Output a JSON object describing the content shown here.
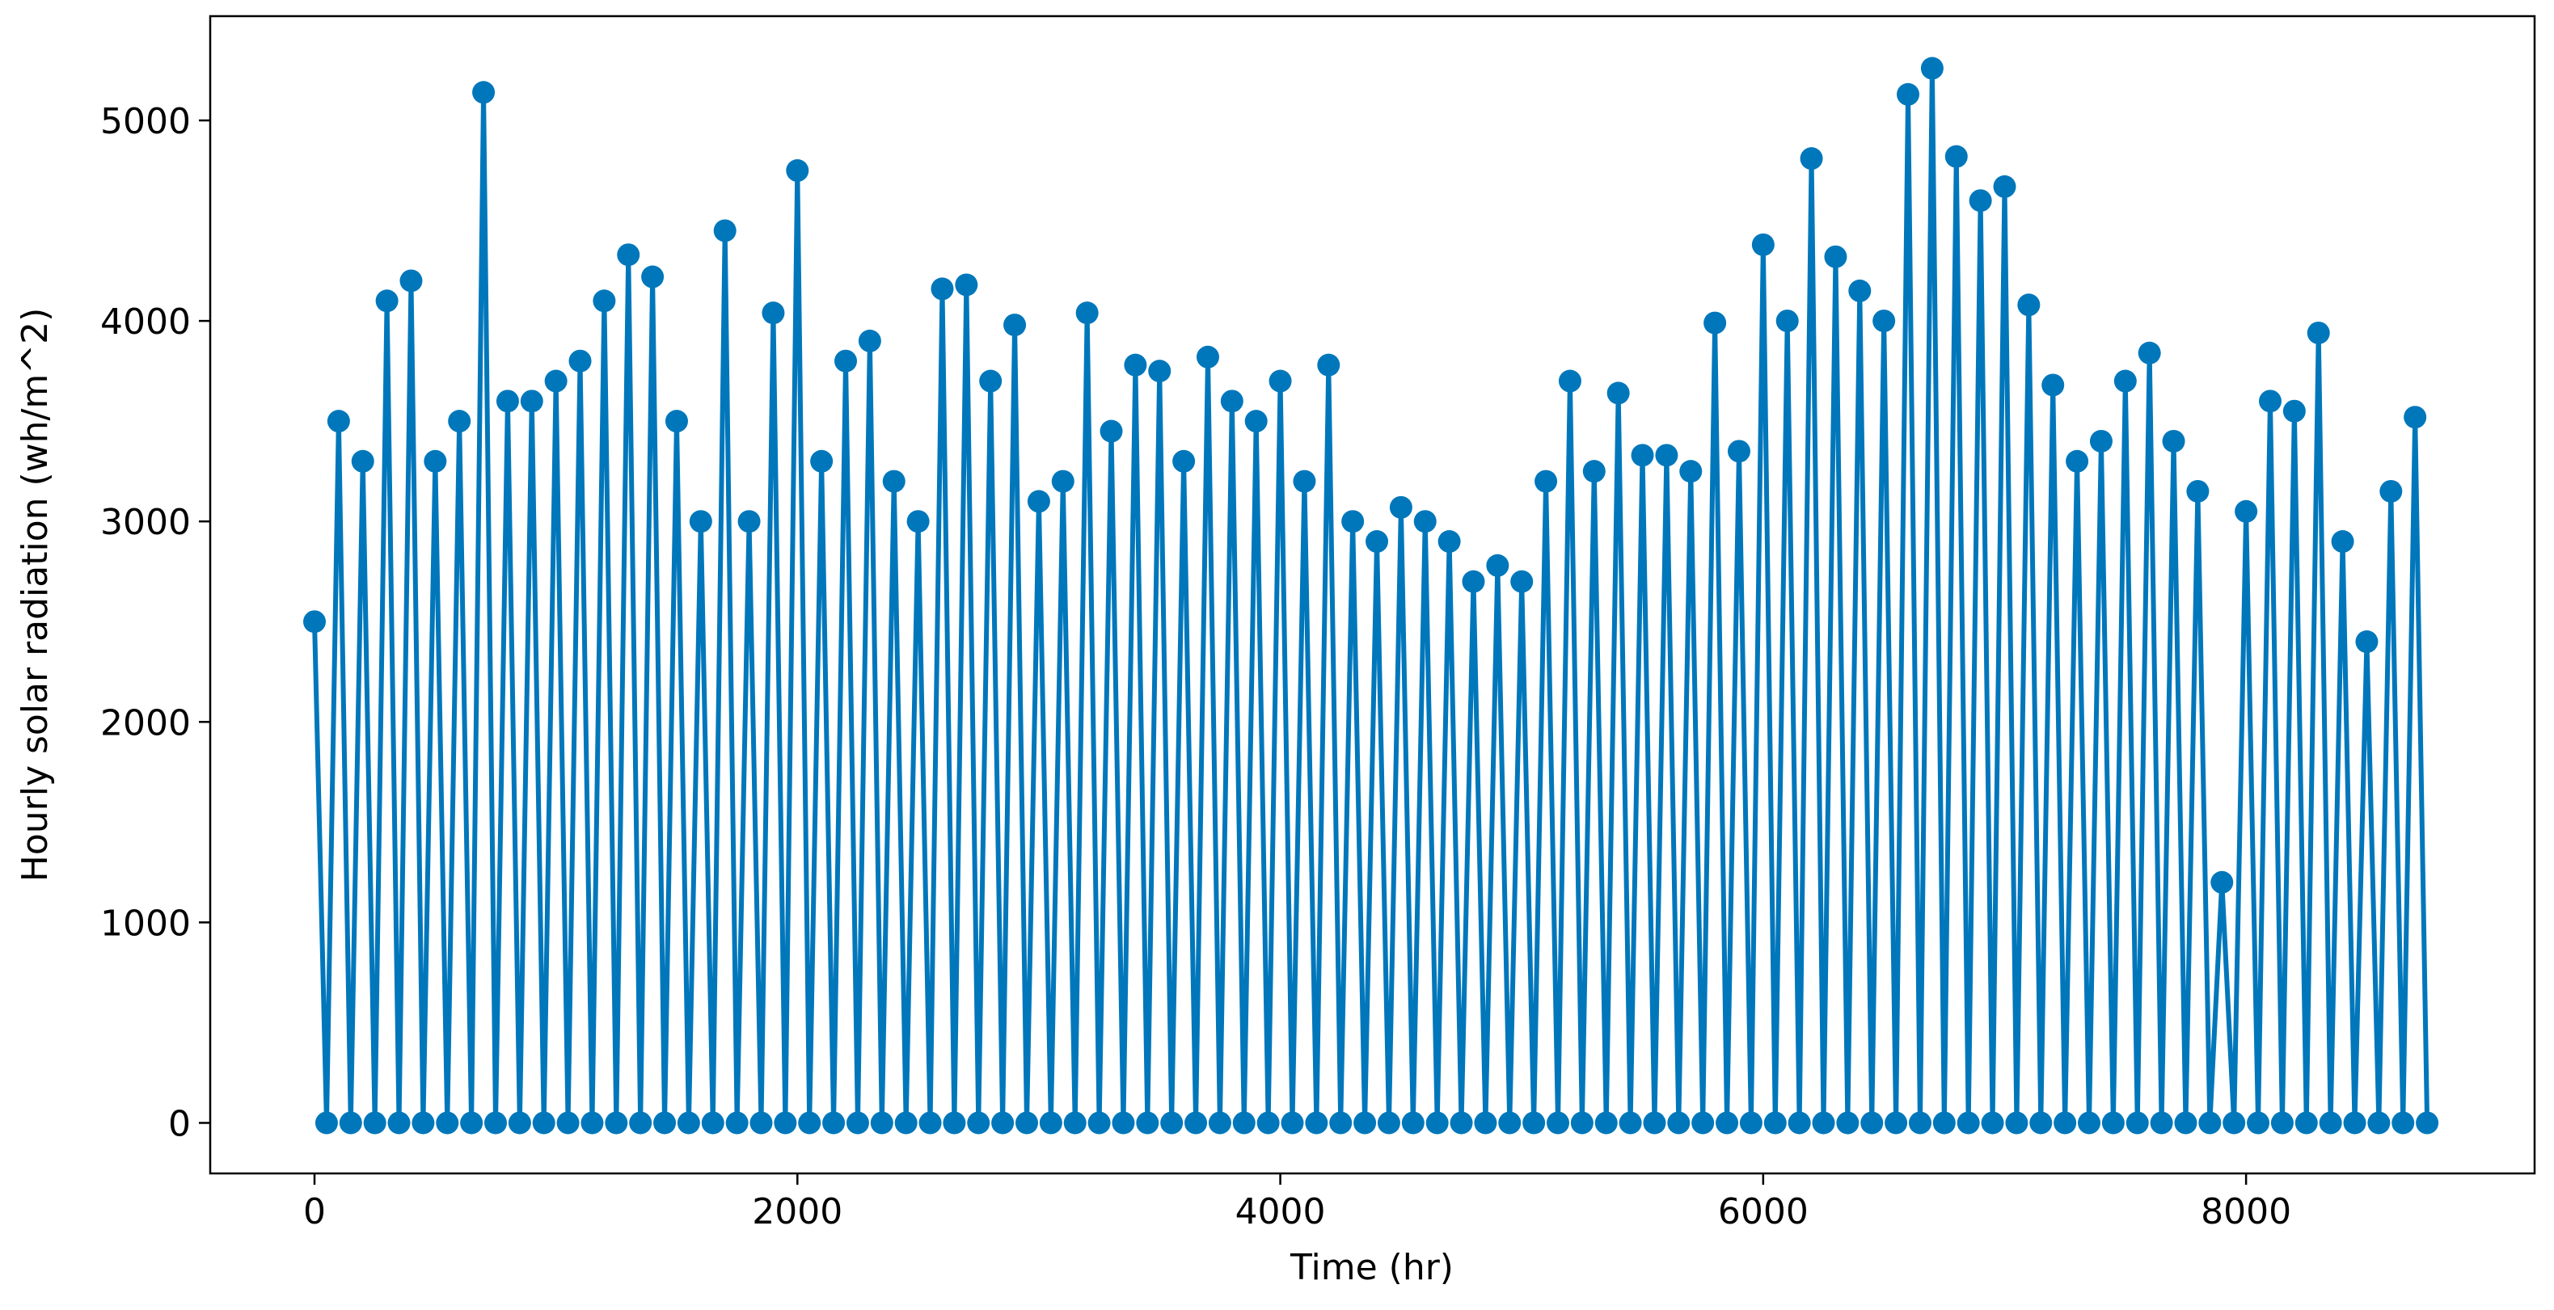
{
  "chart_data": {
    "type": "line",
    "xlabel": "Time (hr)",
    "ylabel": "Hourly solar radiation (wh/m^2)",
    "color": "#0077bb",
    "marker": "circle",
    "grid": false,
    "xlim": [
      -432,
      9195
    ],
    "ylim": [
      -252,
      5520
    ],
    "xticks": [
      0,
      2000,
      4000,
      6000,
      8000
    ],
    "yticks": [
      0,
      1000,
      2000,
      3000,
      4000,
      5000
    ],
    "x": [
      0,
      50,
      100,
      150,
      200,
      250,
      300,
      350,
      400,
      450,
      500,
      550,
      600,
      650,
      700,
      750,
      800,
      850,
      900,
      950,
      1000,
      1050,
      1100,
      1150,
      1200,
      1250,
      1300,
      1350,
      1400,
      1450,
      1500,
      1550,
      1600,
      1650,
      1700,
      1750,
      1800,
      1850,
      1900,
      1950,
      2000,
      2050,
      2100,
      2150,
      2200,
      2250,
      2300,
      2350,
      2400,
      2450,
      2500,
      2550,
      2600,
      2650,
      2700,
      2750,
      2800,
      2850,
      2900,
      2950,
      3000,
      3050,
      3100,
      3150,
      3200,
      3250,
      3300,
      3350,
      3400,
      3450,
      3500,
      3550,
      3600,
      3650,
      3700,
      3750,
      3800,
      3850,
      3900,
      3950,
      4000,
      4050,
      4100,
      4150,
      4200,
      4250,
      4300,
      4350,
      4400,
      4450,
      4500,
      4550,
      4600,
      4650,
      4700,
      4750,
      4800,
      4850,
      4900,
      4950,
      5000,
      5050,
      5100,
      5150,
      5200,
      5250,
      5300,
      5350,
      5400,
      5450,
      5500,
      5550,
      5600,
      5650,
      5700,
      5750,
      5800,
      5850,
      5900,
      5950,
      6000,
      6050,
      6100,
      6150,
      6200,
      6250,
      6300,
      6350,
      6400,
      6450,
      6500,
      6550,
      6600,
      6650,
      6700,
      6750,
      6800,
      6850,
      6900,
      6950,
      7000,
      7050,
      7100,
      7150,
      7200,
      7250,
      7300,
      7350,
      7400,
      7450,
      7500,
      7550,
      7600,
      7650,
      7700,
      7750,
      7800,
      7850,
      7900,
      7950,
      8000,
      8050,
      8100,
      8150,
      8200,
      8250,
      8300,
      8350,
      8400,
      8450,
      8500,
      8550,
      8600,
      8650,
      8700,
      8750
    ],
    "values": [
      2500,
      0,
      3500,
      0,
      3300,
      0,
      4100,
      0,
      4200,
      0,
      3300,
      0,
      3500,
      0,
      5140,
      0,
      3600,
      0,
      3600,
      0,
      3700,
      0,
      3800,
      0,
      4100,
      0,
      4330,
      0,
      4220,
      0,
      3500,
      0,
      3000,
      0,
      4450,
      0,
      3000,
      0,
      4040,
      0,
      4750,
      0,
      3300,
      0,
      3800,
      0,
      3900,
      0,
      3200,
      0,
      3000,
      0,
      4160,
      0,
      4180,
      0,
      3700,
      0,
      3980,
      0,
      3100,
      0,
      3200,
      0,
      4040,
      0,
      3450,
      0,
      3780,
      0,
      3750,
      0,
      3300,
      0,
      3820,
      0,
      3600,
      0,
      3500,
      0,
      3700,
      0,
      3200,
      0,
      3780,
      0,
      3000,
      0,
      2900,
      0,
      3070,
      0,
      3000,
      0,
      2900,
      0,
      2700,
      0,
      2780,
      0,
      2700,
      0,
      3200,
      0,
      3700,
      0,
      3250,
      0,
      3640,
      0,
      3330,
      0,
      3330,
      0,
      3250,
      0,
      3990,
      0,
      3350,
      0,
      4380,
      0,
      4000,
      0,
      4810,
      0,
      4320,
      0,
      4150,
      0,
      4000,
      0,
      5130,
      0,
      5260,
      0,
      4820,
      0,
      4600,
      0,
      4670,
      0,
      4080,
      0,
      3680,
      0,
      3300,
      0,
      3400,
      0,
      3700,
      0,
      3840,
      0,
      3400,
      0,
      3150,
      0,
      1200,
      0,
      3050,
      0,
      3600,
      0,
      3550,
      0,
      3940,
      0,
      2900,
      0,
      2400,
      0,
      3150,
      0,
      3520,
      0
    ]
  }
}
